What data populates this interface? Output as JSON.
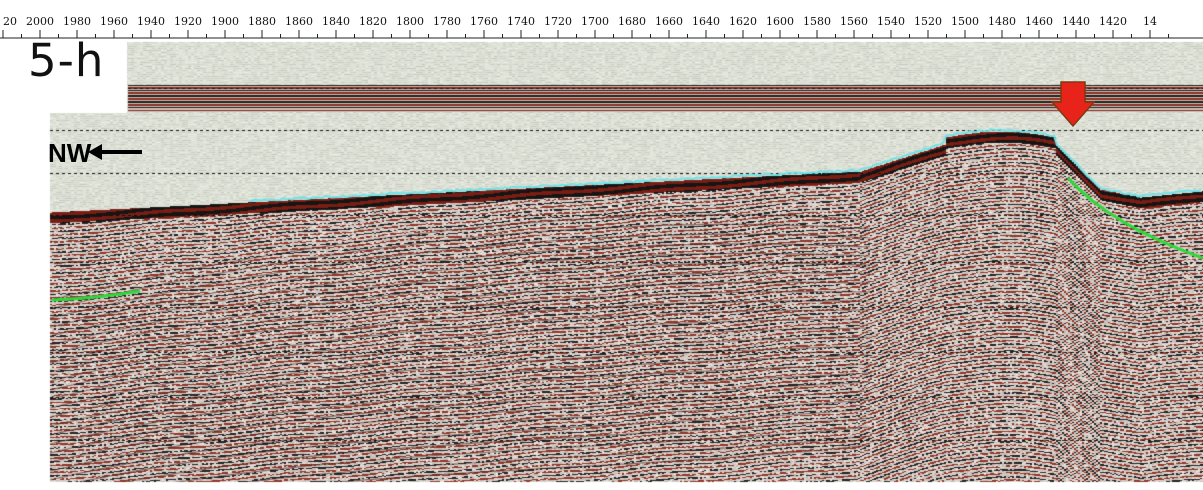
{
  "panel": {
    "label": "5-h"
  },
  "direction": {
    "label": "NW"
  },
  "ruler": {
    "tick_labels": [
      "20",
      "2000",
      "1980",
      "1960",
      "1940",
      "1920",
      "1900",
      "1880",
      "1860",
      "1840",
      "1820",
      "1800",
      "1780",
      "1760",
      "1740",
      "1720",
      "1700",
      "1680",
      "1660",
      "1640",
      "1620",
      "1600",
      "1580",
      "1560",
      "1540",
      "1520",
      "1500",
      "1480",
      "1460",
      "1440",
      "1420",
      "14"
    ]
  },
  "markers": {
    "arrow_color": "#e8231a",
    "seafloor_horizon_color": "#6fe3e8",
    "horizon_color": "#2fd93a"
  },
  "icons": {
    "direction_arrow": "left-arrow-icon",
    "location_marker": "down-arrow-icon"
  }
}
